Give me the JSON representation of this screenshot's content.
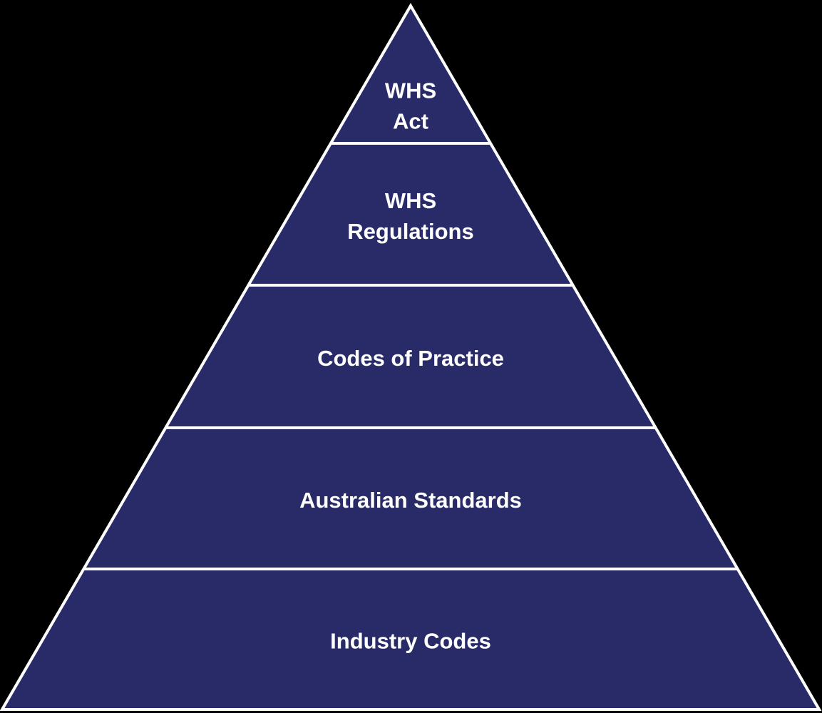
{
  "diagram": {
    "type": "pyramid",
    "colors": {
      "background": "#000000",
      "tier_fill": "#292a68",
      "separator": "#ffffff",
      "label": "#ffffff"
    },
    "tiers": [
      {
        "lines": [
          "WHS",
          "Act"
        ]
      },
      {
        "lines": [
          "WHS",
          "Regulations"
        ]
      },
      {
        "lines": [
          "Codes of Practice"
        ]
      },
      {
        "lines": [
          "Australian Standards"
        ]
      },
      {
        "lines": [
          "Industry Codes"
        ]
      }
    ]
  }
}
